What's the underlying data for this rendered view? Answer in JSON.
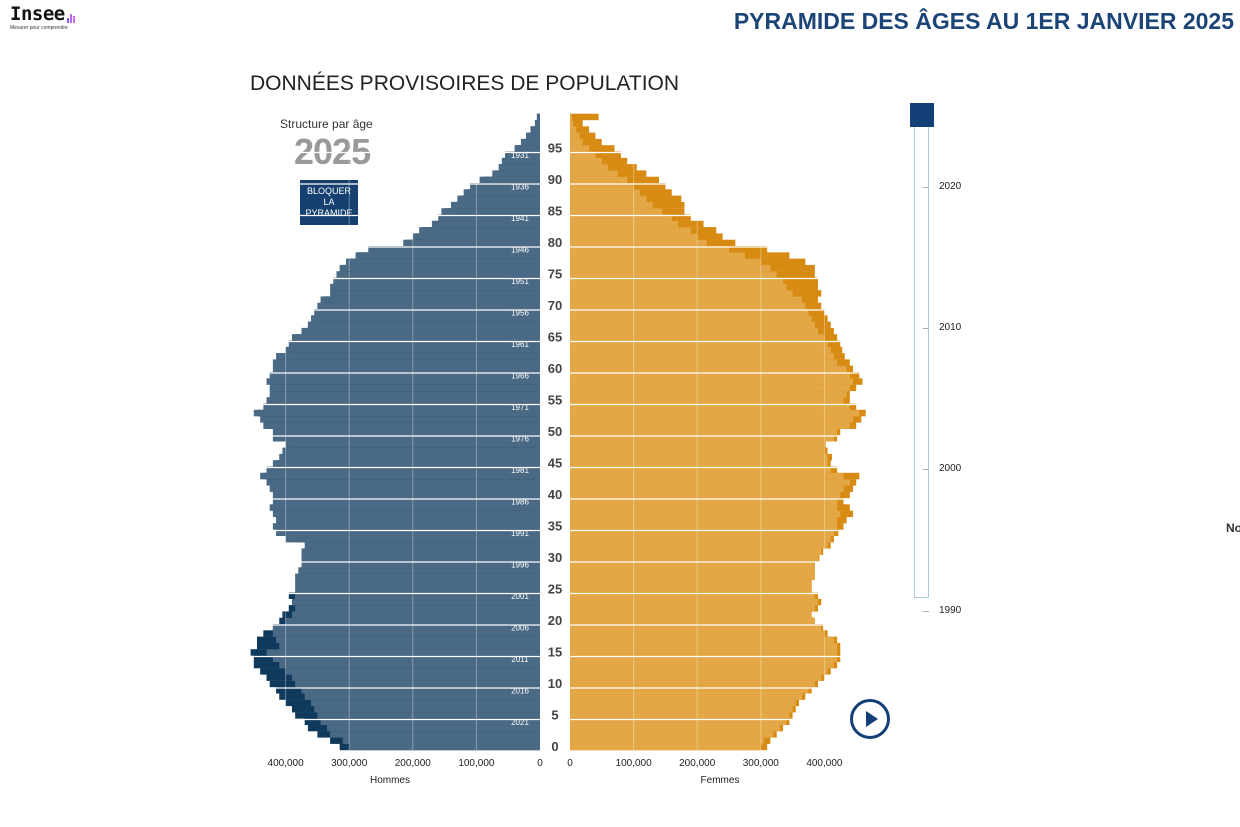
{
  "header": {
    "logo_text": "Insee",
    "logo_tagline": "Mesurer pour comprendre",
    "title": "PYRAMIDE DES ÂGES AU 1ER JANVIER 2025"
  },
  "subtitle": "DONNÉES PROVISOIRES DE POPULATION",
  "panel": {
    "structure_label": "Structure par âge",
    "year": "2025",
    "lock_button": [
      "BLOQUER",
      "LA",
      "PYRAMIDE"
    ]
  },
  "slider": {
    "ticks": [
      "2020",
      "2010",
      "2000",
      "1990"
    ],
    "selected_year": 2025,
    "range": [
      1990,
      2025
    ]
  },
  "cut_text": "No",
  "colors": {
    "men": "#4a6984",
    "men_reference": "#0f3a5c",
    "women": "#e3a746",
    "women_reference": "#d88b13",
    "accent": "#1b4477"
  },
  "chart_data": {
    "type": "bar",
    "subtype": "population-pyramid",
    "title": "Structure par âge 2025",
    "ages": [
      0,
      1,
      2,
      3,
      4,
      5,
      6,
      7,
      8,
      9,
      10,
      11,
      12,
      13,
      14,
      15,
      16,
      17,
      18,
      19,
      20,
      21,
      22,
      23,
      24,
      25,
      26,
      27,
      28,
      29,
      30,
      31,
      32,
      33,
      34,
      35,
      36,
      37,
      38,
      39,
      40,
      41,
      42,
      43,
      44,
      45,
      46,
      47,
      48,
      49,
      50,
      51,
      52,
      53,
      54,
      55,
      56,
      57,
      58,
      59,
      60,
      61,
      62,
      63,
      64,
      65,
      66,
      67,
      68,
      69,
      70,
      71,
      72,
      73,
      74,
      75,
      76,
      77,
      78,
      79,
      80,
      81,
      82,
      83,
      84,
      85,
      86,
      87,
      88,
      89,
      90,
      91,
      92,
      93,
      94,
      95,
      96,
      97,
      98,
      99,
      100
    ],
    "age_ticks": [
      0,
      5,
      10,
      15,
      20,
      25,
      30,
      35,
      40,
      45,
      50,
      55,
      60,
      65,
      70,
      75,
      80,
      85,
      90,
      95
    ],
    "birth_year_labels": [
      {
        "age": 4,
        "label": "2021"
      },
      {
        "age": 9,
        "label": "2016"
      },
      {
        "age": 14,
        "label": "2011"
      },
      {
        "age": 19,
        "label": "2006"
      },
      {
        "age": 24,
        "label": "2001"
      },
      {
        "age": 29,
        "label": "1996"
      },
      {
        "age": 34,
        "label": "1991"
      },
      {
        "age": 39,
        "label": "1986"
      },
      {
        "age": 44,
        "label": "1981"
      },
      {
        "age": 49,
        "label": "1976"
      },
      {
        "age": 54,
        "label": "1971"
      },
      {
        "age": 59,
        "label": "1966"
      },
      {
        "age": 64,
        "label": "1961"
      },
      {
        "age": 69,
        "label": "1956"
      },
      {
        "age": 74,
        "label": "1951"
      },
      {
        "age": 79,
        "label": "1946"
      },
      {
        "age": 84,
        "label": "1941"
      },
      {
        "age": 89,
        "label": "1936"
      },
      {
        "age": 94,
        "label": "1931"
      }
    ],
    "series": [
      {
        "name": "Hommes 2025",
        "side": "left",
        "values": [
          300000,
          310000,
          330000,
          335000,
          345000,
          350000,
          355000,
          360000,
          370000,
          375000,
          385000,
          390000,
          400000,
          410000,
          420000,
          430000,
          410000,
          415000,
          420000,
          420000,
          400000,
          390000,
          385000,
          390000,
          385000,
          385000,
          385000,
          385000,
          380000,
          375000,
          375000,
          375000,
          370000,
          400000,
          415000,
          420000,
          415000,
          420000,
          425000,
          420000,
          420000,
          425000,
          430000,
          440000,
          430000,
          420000,
          410000,
          405000,
          400000,
          420000,
          420000,
          435000,
          440000,
          450000,
          435000,
          430000,
          425000,
          425000,
          430000,
          425000,
          420000,
          420000,
          415000,
          400000,
          395000,
          390000,
          375000,
          365000,
          360000,
          355000,
          350000,
          345000,
          330000,
          330000,
          325000,
          320000,
          315000,
          305000,
          290000,
          270000,
          215000,
          200000,
          190000,
          170000,
          160000,
          155000,
          140000,
          130000,
          120000,
          110000,
          95000,
          75000,
          65000,
          60000,
          55000,
          40000,
          30000,
          22000,
          15000,
          8000,
          5000
        ]
      },
      {
        "name": "Hommes 1990 (pyramide bloquée)",
        "side": "left",
        "values": [
          315000,
          330000,
          350000,
          365000,
          370000,
          385000,
          390000,
          400000,
          410000,
          415000,
          425000,
          430000,
          440000,
          450000,
          450000,
          455000,
          445000,
          445000,
          435000,
          420000,
          410000,
          405000,
          395000,
          385000,
          395000,
          380000,
          380000,
          380000,
          375000,
          370000,
          370000,
          370000,
          365000,
          395000,
          410000,
          415000,
          410000,
          415000,
          420000,
          415000,
          415000,
          420000,
          425000,
          435000,
          425000,
          415000,
          405000,
          400000,
          395000,
          415000,
          415000,
          430000,
          435000,
          445000,
          430000,
          425000,
          420000,
          420000,
          425000,
          420000,
          415000,
          415000,
          410000,
          395000,
          390000,
          385000,
          370000,
          360000,
          355000,
          350000,
          345000,
          340000,
          325000,
          325000,
          320000,
          315000,
          310000,
          300000,
          285000,
          265000,
          210000,
          195000,
          185000,
          165000,
          155000,
          150000,
          135000,
          125000,
          115000,
          105000,
          90000,
          70000,
          60000,
          55000,
          50000,
          38000,
          28000,
          20000,
          14000,
          7000,
          4000
        ]
      },
      {
        "name": "Femmes 2025",
        "side": "right",
        "values": [
          300000,
          305000,
          320000,
          330000,
          340000,
          345000,
          350000,
          355000,
          365000,
          375000,
          385000,
          395000,
          405000,
          415000,
          420000,
          420000,
          420000,
          415000,
          400000,
          395000,
          385000,
          380000,
          385000,
          390000,
          385000,
          380000,
          380000,
          385000,
          385000,
          385000,
          390000,
          395000,
          405000,
          410000,
          415000,
          420000,
          420000,
          425000,
          420000,
          420000,
          425000,
          430000,
          440000,
          430000,
          410000,
          405000,
          405000,
          400000,
          400000,
          415000,
          420000,
          440000,
          445000,
          455000,
          440000,
          430000,
          435000,
          440000,
          445000,
          440000,
          435000,
          420000,
          415000,
          410000,
          405000,
          400000,
          390000,
          385000,
          380000,
          375000,
          370000,
          365000,
          350000,
          340000,
          335000,
          325000,
          315000,
          300000,
          275000,
          250000,
          215000,
          200000,
          190000,
          170000,
          160000,
          145000,
          130000,
          120000,
          110000,
          100000,
          90000,
          75000,
          60000,
          50000,
          40000,
          30000,
          20000,
          15000,
          10000,
          5000,
          3000
        ]
      },
      {
        "name": "Femmes 1990 (pyramide bloquée)",
        "side": "right",
        "values": [
          310000,
          315000,
          325000,
          335000,
          345000,
          350000,
          355000,
          360000,
          370000,
          380000,
          390000,
          400000,
          410000,
          420000,
          425000,
          425000,
          425000,
          420000,
          405000,
          398000,
          385000,
          380000,
          390000,
          395000,
          390000,
          380000,
          380000,
          385000,
          385000,
          385000,
          392000,
          398000,
          410000,
          415000,
          422000,
          430000,
          435000,
          445000,
          440000,
          430000,
          440000,
          445000,
          450000,
          455000,
          420000,
          410000,
          412000,
          405000,
          402000,
          420000,
          425000,
          450000,
          458000,
          465000,
          450000,
          440000,
          440000,
          450000,
          460000,
          455000,
          445000,
          440000,
          432000,
          428000,
          425000,
          420000,
          415000,
          410000,
          405000,
          400000,
          395000,
          390000,
          395000,
          390000,
          390000,
          385000,
          385000,
          370000,
          345000,
          310000,
          260000,
          240000,
          230000,
          210000,
          190000,
          180000,
          180000,
          175000,
          160000,
          150000,
          140000,
          120000,
          105000,
          90000,
          80000,
          70000,
          50000,
          40000,
          30000,
          20000,
          45000
        ]
      }
    ],
    "xlabel_left": "Hommes",
    "xlabel_right": "Femmes",
    "x_ticks_left": [
      "400,000",
      "300,000",
      "200,000",
      "100,000",
      "0"
    ],
    "x_ticks_right": [
      "0",
      "100,000",
      "200,000",
      "300,000",
      "400,000"
    ],
    "x_tick_values": [
      0,
      100000,
      200000,
      300000,
      400000
    ],
    "xlim": [
      0,
      460000
    ],
    "ylim": [
      0,
      100
    ],
    "grid": true
  }
}
